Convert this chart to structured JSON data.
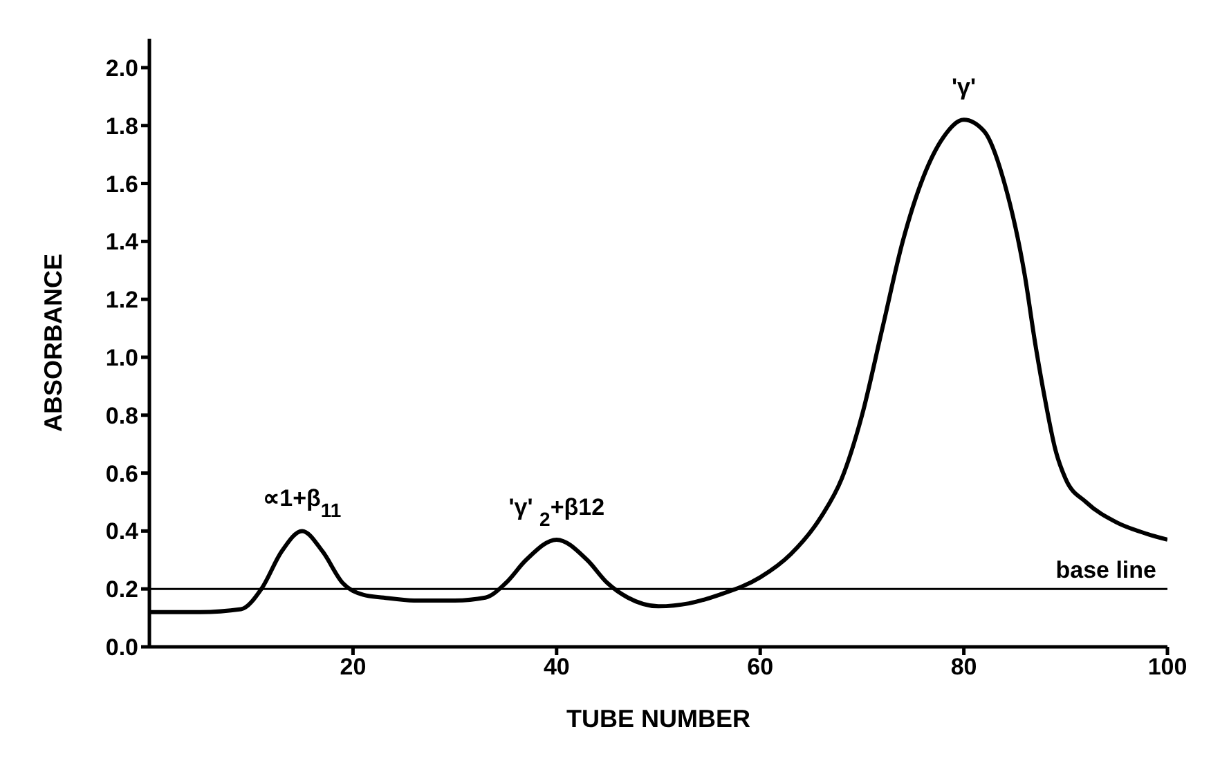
{
  "chart_data": {
    "type": "line",
    "xlabel": "TUBE NUMBER",
    "ylabel": "ABSORBANCE",
    "x": [
      0,
      5,
      9,
      11,
      13,
      15,
      17,
      19,
      21,
      23,
      26,
      30,
      33,
      35,
      37,
      40,
      43,
      45,
      47,
      50,
      53,
      56,
      60,
      63,
      66,
      68,
      70,
      72,
      74,
      76,
      78,
      80,
      82,
      84,
      86,
      87,
      88,
      89,
      90,
      92,
      95,
      98,
      100
    ],
    "series": [
      {
        "color": "#000000",
        "values": [
          0.12,
          0.12,
          0.13,
          0.2,
          0.33,
          0.4,
          0.33,
          0.22,
          0.18,
          0.17,
          0.16,
          0.16,
          0.17,
          0.22,
          0.3,
          0.37,
          0.3,
          0.22,
          0.17,
          0.14,
          0.15,
          0.18,
          0.24,
          0.32,
          0.45,
          0.58,
          0.8,
          1.1,
          1.4,
          1.62,
          1.76,
          1.82,
          1.78,
          1.6,
          1.28,
          1.05,
          0.85,
          0.68,
          0.58,
          0.5,
          0.43,
          0.39,
          0.37
        ]
      }
    ],
    "xlim": [
      0,
      100
    ],
    "xticks": [
      20,
      40,
      60,
      80,
      100
    ],
    "ylim": [
      0,
      2.1
    ],
    "yticks": [
      {
        "value": 0,
        "label": "0.0"
      },
      0.2,
      0.4,
      0.6,
      0.8,
      {
        "value": 1,
        "label": "1.0"
      },
      1.2,
      1.4,
      1.6,
      1.8,
      {
        "value": 2,
        "label": "2.0"
      }
    ],
    "ref_lines": [
      {
        "axis": "y",
        "value": 0.2,
        "label": "base line",
        "color": "#000000"
      }
    ],
    "annotations": [
      {
        "text": "∝1+β$_{11}$",
        "x": 15,
        "y": 0.4
      },
      {
        "text": "'γ' $_{2}$+β12",
        "x": 40,
        "y": 0.37
      },
      {
        "text": "'γ'",
        "x": 80,
        "y": 1.82
      }
    ],
    "grid": false,
    "legend": false,
    "marker": "none",
    "line_style": "solid"
  }
}
